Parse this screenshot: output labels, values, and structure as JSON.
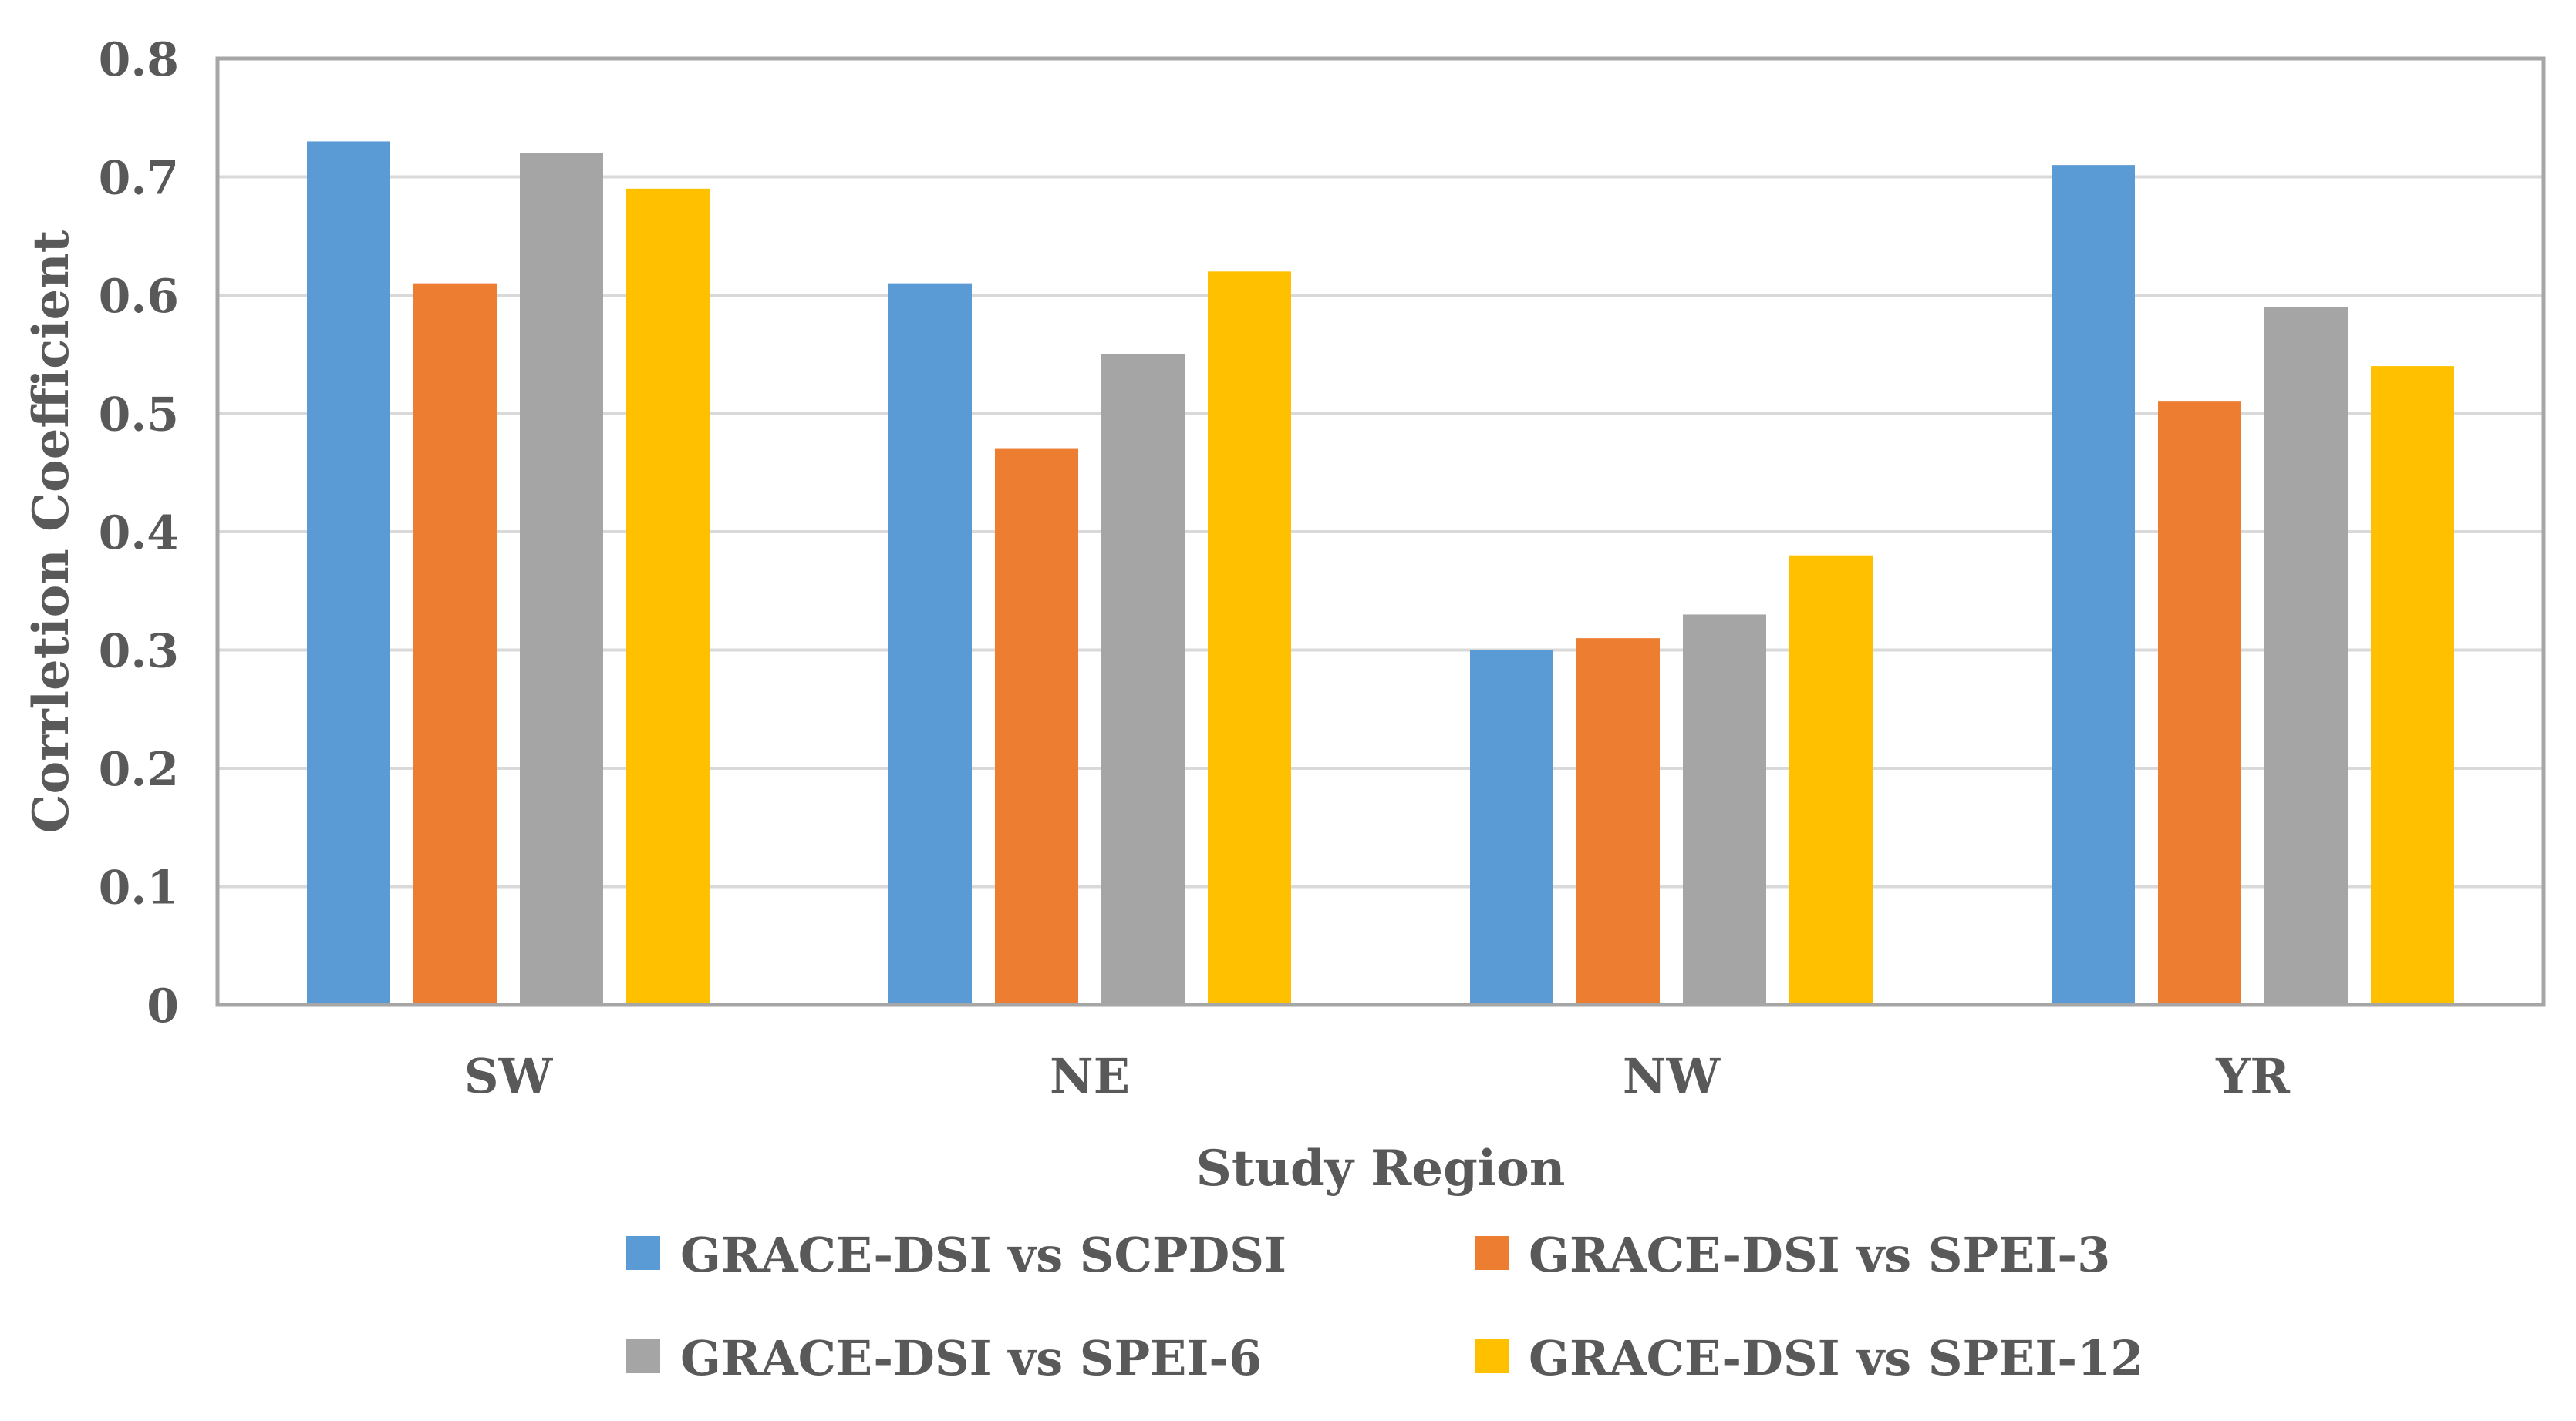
{
  "chart_data": {
    "type": "bar",
    "title": "",
    "xlabel": "Study Region",
    "ylabel": "Corrletion Coefficient",
    "ylim": [
      0,
      0.8
    ],
    "yticks": [
      "0",
      "0.1",
      "0.2",
      "0.3",
      "0.4",
      "0.5",
      "0.6",
      "0.7",
      "0.8"
    ],
    "grid": true,
    "legend_position": "bottom",
    "categories": [
      "SW",
      "NE",
      "NW",
      "YR"
    ],
    "series": [
      {
        "name": "GRACE-DSI vs SCPDSI",
        "color": "#5B9BD5",
        "values": [
          0.73,
          0.61,
          0.3,
          0.71
        ]
      },
      {
        "name": "GRACE-DSI vs SPEI-3",
        "color": "#ED7D31",
        "values": [
          0.61,
          0.47,
          0.31,
          0.51
        ]
      },
      {
        "name": "GRACE-DSI vs SPEI-6",
        "color": "#A5A5A5",
        "values": [
          0.72,
          0.55,
          0.33,
          0.59
        ]
      },
      {
        "name": "GRACE-DSI vs SPEI-12",
        "color": "#FFC000",
        "values": [
          0.69,
          0.62,
          0.38,
          0.54
        ]
      }
    ]
  }
}
